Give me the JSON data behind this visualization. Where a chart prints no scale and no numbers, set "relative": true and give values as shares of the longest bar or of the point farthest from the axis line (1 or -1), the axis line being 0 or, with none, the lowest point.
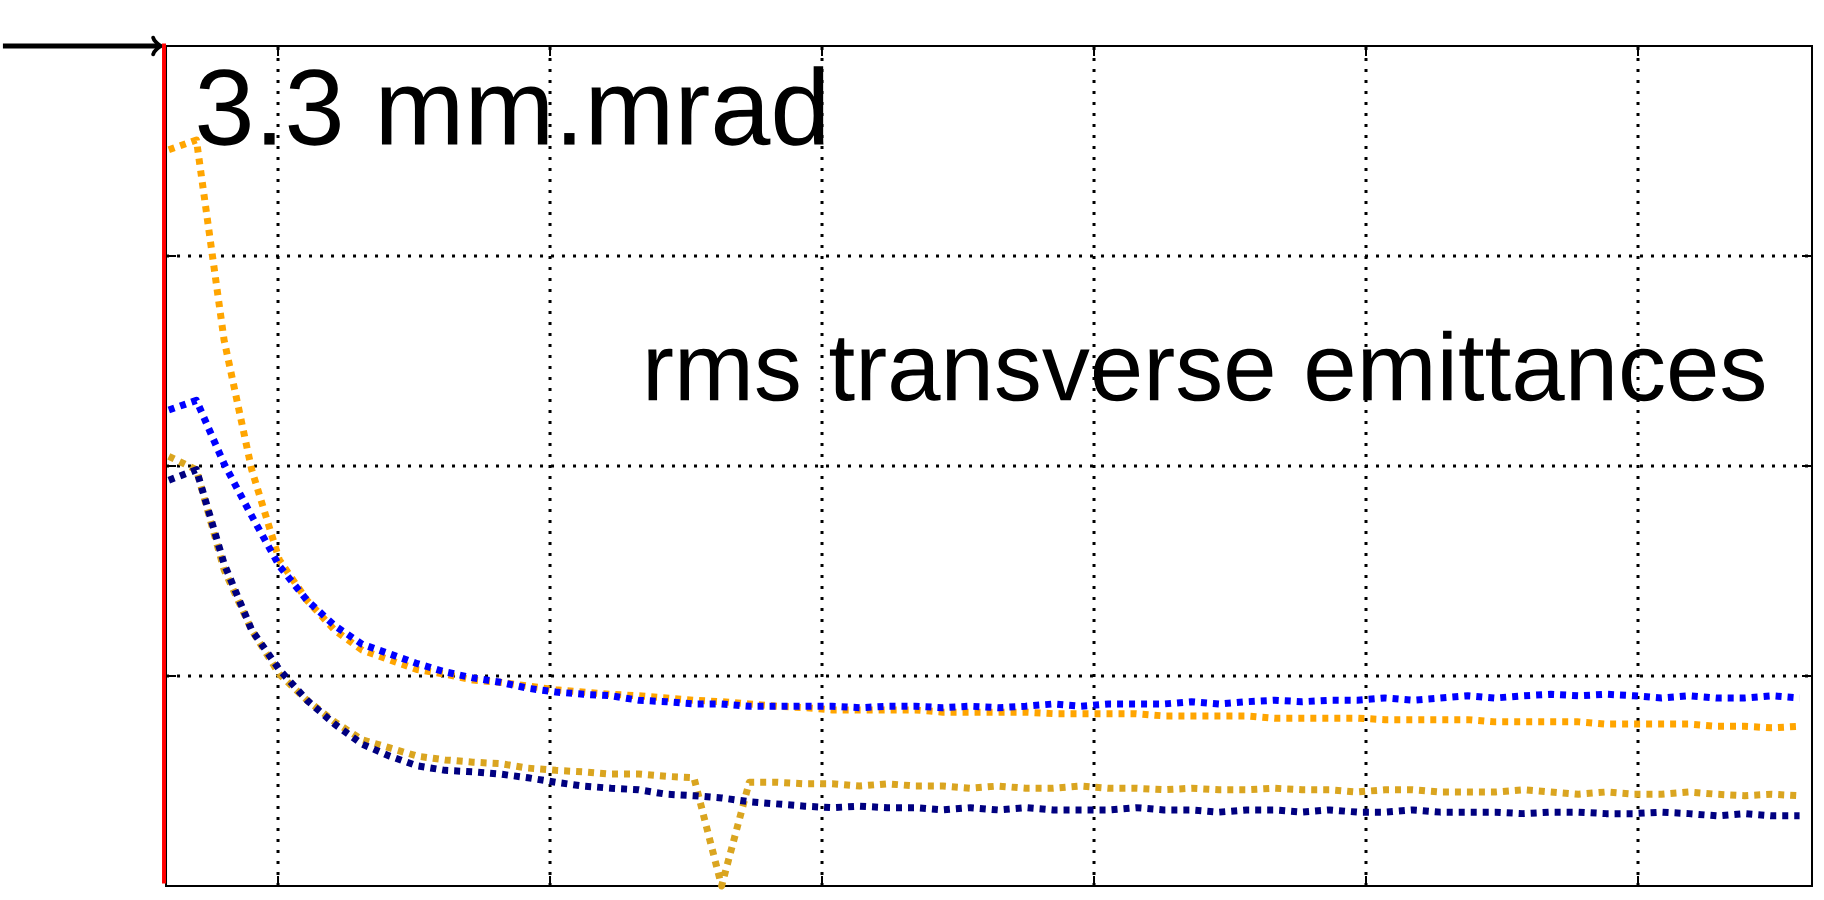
{
  "chart_data": {
    "type": "line",
    "relative": true,
    "grid": true,
    "line_style": "dotted",
    "marker": "none",
    "annotations": [
      "3.3 mm.mrad",
      "rms transverse emittances"
    ],
    "categories": [
      null,
      null,
      null,
      null,
      null,
      null,
      null,
      null,
      null,
      null,
      null,
      null,
      null,
      null,
      null,
      null,
      null,
      null,
      null,
      null,
      null,
      null,
      null,
      null,
      null,
      null,
      null,
      null,
      null,
      null,
      null,
      null,
      null,
      null,
      null,
      null,
      null,
      null,
      null,
      null,
      null,
      null,
      null,
      null,
      null,
      null,
      null,
      null,
      null,
      null,
      null,
      null,
      null,
      null,
      null,
      null,
      null,
      null,
      null,
      null
    ],
    "series": [
      {
        "color": "#ffa500",
        "values": [
          0.987,
          1.0,
          0.732,
          0.558,
          0.437,
          0.383,
          0.343,
          0.316,
          0.303,
          0.29,
          0.284,
          0.276,
          0.273,
          0.268,
          0.263,
          0.26,
          0.257,
          0.255,
          0.252,
          0.249,
          0.247,
          0.244,
          0.241,
          0.239,
          0.236,
          0.236,
          0.236,
          0.236,
          0.233,
          0.233,
          0.233,
          0.233,
          0.231,
          0.231,
          0.231,
          0.231,
          0.228,
          0.228,
          0.228,
          0.228,
          0.225,
          0.225,
          0.225,
          0.225,
          0.223,
          0.223,
          0.223,
          0.223,
          0.22,
          0.22,
          0.22,
          0.22,
          0.217,
          0.217,
          0.217,
          0.217,
          0.214,
          0.214,
          0.212,
          0.214
        ]
      },
      {
        "color": "#0000ff",
        "values": [
          0.638,
          0.651,
          0.566,
          0.496,
          0.429,
          0.383,
          0.349,
          0.324,
          0.311,
          0.298,
          0.287,
          0.279,
          0.273,
          0.265,
          0.26,
          0.257,
          0.255,
          0.249,
          0.247,
          0.244,
          0.244,
          0.241,
          0.241,
          0.241,
          0.241,
          0.239,
          0.241,
          0.241,
          0.239,
          0.241,
          0.239,
          0.241,
          0.244,
          0.241,
          0.244,
          0.244,
          0.244,
          0.247,
          0.244,
          0.247,
          0.249,
          0.247,
          0.249,
          0.249,
          0.252,
          0.249,
          0.252,
          0.255,
          0.252,
          0.255,
          0.257,
          0.255,
          0.257,
          0.255,
          0.252,
          0.255,
          0.252,
          0.252,
          0.255,
          0.252
        ]
      },
      {
        "color": "#daa520",
        "values": [
          0.576,
          0.558,
          0.424,
          0.343,
          0.284,
          0.249,
          0.22,
          0.196,
          0.185,
          0.174,
          0.169,
          0.166,
          0.164,
          0.158,
          0.155,
          0.153,
          0.15,
          0.15,
          0.147,
          0.145,
          0,
          0.139,
          0.139,
          0.137,
          0.137,
          0.134,
          0.137,
          0.134,
          0.134,
          0.131,
          0.134,
          0.131,
          0.131,
          0.134,
          0.131,
          0.131,
          0.129,
          0.131,
          0.129,
          0.129,
          0.131,
          0.129,
          0.129,
          0.126,
          0.129,
          0.129,
          0.126,
          0.126,
          0.126,
          0.129,
          0.126,
          0.123,
          0.126,
          0.123,
          0.123,
          0.126,
          0.123,
          0.121,
          0.123,
          0.121
        ]
      },
      {
        "color": "#000080",
        "values": [
          0.544,
          0.558,
          0.432,
          0.343,
          0.29,
          0.249,
          0.217,
          0.19,
          0.174,
          0.161,
          0.155,
          0.153,
          0.15,
          0.145,
          0.139,
          0.134,
          0.131,
          0.129,
          0.123,
          0.121,
          0.118,
          0.113,
          0.11,
          0.107,
          0.105,
          0.107,
          0.105,
          0.105,
          0.102,
          0.105,
          0.102,
          0.105,
          0.102,
          0.102,
          0.102,
          0.105,
          0.102,
          0.102,
          0.099,
          0.102,
          0.102,
          0.099,
          0.102,
          0.099,
          0.099,
          0.102,
          0.099,
          0.099,
          0.099,
          0.097,
          0.099,
          0.099,
          0.097,
          0.097,
          0.099,
          0.097,
          0.094,
          0.097,
          0.094,
          0.094
        ]
      }
    ]
  }
}
